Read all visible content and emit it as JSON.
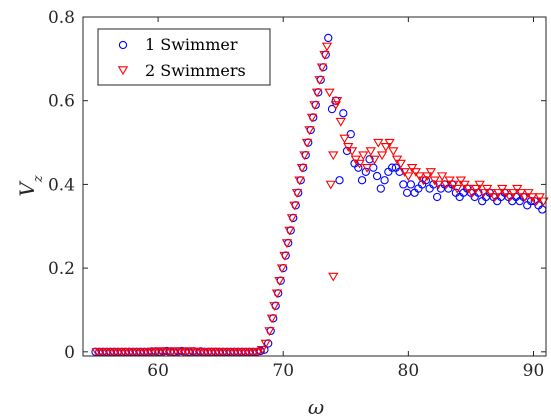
{
  "chart_data": {
    "type": "scatter",
    "title": "",
    "xlabel": "ω",
    "ylabel": "V_z",
    "xlim": [
      54,
      91
    ],
    "ylim": [
      -0.01,
      0.8
    ],
    "xticks": [
      60,
      70,
      80,
      90
    ],
    "yticks": [
      0,
      0.2,
      0.4,
      0.6,
      0.8
    ],
    "xtick_labels": [
      "60",
      "70",
      "80",
      "90"
    ],
    "ytick_labels": [
      "0",
      "0.2",
      "0.4",
      "0.6",
      "0.8"
    ],
    "grid": false,
    "legend_position": "top-left",
    "series": [
      {
        "name": "1 Swimmer",
        "marker": "circle",
        "color": "#0000ff",
        "x": [
          55.0,
          55.3,
          55.6,
          55.9,
          56.2,
          56.5,
          56.8,
          57.1,
          57.4,
          57.7,
          58.0,
          58.3,
          58.6,
          58.9,
          59.2,
          59.5,
          59.8,
          60.1,
          60.4,
          60.7,
          61.0,
          61.3,
          61.6,
          61.9,
          62.2,
          62.5,
          62.8,
          63.1,
          63.4,
          63.7,
          64.0,
          64.3,
          64.6,
          64.9,
          65.2,
          65.5,
          65.8,
          66.1,
          66.4,
          66.7,
          67.0,
          67.3,
          67.6,
          67.9,
          68.2,
          68.5,
          68.8,
          69.0,
          69.2,
          69.4,
          69.6,
          69.8,
          70.0,
          70.2,
          70.4,
          70.6,
          70.8,
          71.0,
          71.2,
          71.4,
          71.6,
          71.8,
          72.0,
          72.2,
          72.4,
          72.6,
          72.8,
          73.0,
          73.2,
          73.4,
          73.6,
          73.9,
          74.2,
          74.5,
          74.8,
          75.1,
          75.4,
          75.7,
          76.0,
          76.3,
          76.6,
          76.9,
          77.2,
          77.5,
          77.8,
          78.1,
          78.4,
          78.7,
          79.0,
          79.3,
          79.6,
          79.9,
          80.2,
          80.5,
          80.8,
          81.1,
          81.4,
          81.7,
          82.0,
          82.3,
          82.6,
          82.9,
          83.2,
          83.5,
          83.8,
          84.1,
          84.4,
          84.7,
          85.0,
          85.3,
          85.6,
          85.9,
          86.2,
          86.5,
          86.8,
          87.1,
          87.4,
          87.7,
          88.0,
          88.3,
          88.6,
          88.9,
          89.2,
          89.5,
          89.8,
          90.1,
          90.4,
          90.7
        ],
        "y": [
          0.0,
          0.0,
          0.0,
          0.0,
          0.0,
          0.0,
          0.0,
          0.0,
          0.0,
          0.0,
          0.0,
          0.0,
          0.0,
          0.0,
          0.0,
          0.001,
          0.001,
          0.0,
          0.001,
          0.002,
          0.001,
          0.0,
          0.001,
          0.002,
          0.001,
          0.0,
          0.001,
          0.0,
          0.001,
          0.0,
          0.0,
          0.0,
          0.0,
          0.0,
          0.0,
          0.0,
          0.0,
          0.0,
          0.0,
          0.0,
          0.0,
          0.0,
          0.0,
          0.0,
          0.002,
          0.005,
          0.02,
          0.05,
          0.08,
          0.11,
          0.14,
          0.17,
          0.2,
          0.23,
          0.26,
          0.29,
          0.32,
          0.35,
          0.38,
          0.41,
          0.44,
          0.47,
          0.5,
          0.53,
          0.56,
          0.59,
          0.62,
          0.65,
          0.68,
          0.71,
          0.75,
          0.58,
          0.6,
          0.41,
          0.57,
          0.48,
          0.52,
          0.45,
          0.44,
          0.41,
          0.43,
          0.46,
          0.44,
          0.42,
          0.39,
          0.41,
          0.43,
          0.44,
          0.44,
          0.43,
          0.4,
          0.38,
          0.4,
          0.38,
          0.39,
          0.4,
          0.41,
          0.39,
          0.4,
          0.37,
          0.39,
          0.4,
          0.39,
          0.4,
          0.38,
          0.37,
          0.38,
          0.39,
          0.38,
          0.37,
          0.38,
          0.36,
          0.37,
          0.38,
          0.37,
          0.36,
          0.37,
          0.38,
          0.37,
          0.36,
          0.37,
          0.36,
          0.37,
          0.35,
          0.36,
          0.36,
          0.35,
          0.34
        ]
      },
      {
        "name": "2 Swimmers",
        "marker": "triangle-down",
        "color": "#ff0000",
        "x": [
          55.1,
          55.4,
          55.7,
          56.0,
          56.3,
          56.6,
          56.9,
          57.2,
          57.5,
          57.8,
          58.1,
          58.4,
          58.7,
          59.0,
          59.3,
          59.6,
          59.9,
          60.2,
          60.5,
          60.8,
          61.1,
          61.4,
          61.7,
          62.0,
          62.3,
          62.6,
          62.9,
          63.2,
          63.5,
          63.8,
          64.1,
          64.4,
          64.7,
          65.0,
          65.3,
          65.6,
          65.9,
          66.2,
          66.5,
          66.8,
          67.1,
          67.4,
          67.7,
          68.0,
          68.3,
          68.6,
          68.9,
          69.1,
          69.3,
          69.5,
          69.7,
          69.9,
          70.1,
          70.3,
          70.5,
          70.7,
          70.9,
          71.1,
          71.3,
          71.5,
          71.7,
          71.9,
          72.1,
          72.3,
          72.5,
          72.7,
          72.9,
          73.1,
          73.3,
          73.5,
          73.7,
          74.0,
          74.3,
          74.6,
          74.9,
          75.2,
          75.5,
          75.8,
          76.1,
          76.4,
          76.7,
          77.0,
          77.3,
          77.6,
          77.9,
          78.2,
          78.5,
          78.8,
          79.1,
          79.4,
          79.7,
          80.0,
          80.3,
          80.6,
          80.9,
          81.2,
          81.5,
          81.8,
          82.1,
          82.4,
          82.7,
          83.0,
          83.3,
          83.6,
          83.9,
          84.2,
          84.5,
          84.8,
          85.1,
          85.4,
          85.7,
          86.0,
          86.3,
          86.6,
          86.9,
          87.2,
          87.5,
          87.8,
          88.1,
          88.4,
          88.7,
          89.0,
          89.3,
          89.6,
          89.9,
          90.2,
          90.5,
          90.8,
          73.8,
          74.0,
          74.2
        ],
        "y": [
          0.0,
          0.0,
          0.0,
          0.0,
          0.0,
          0.0,
          0.0,
          0.0,
          0.0,
          0.0,
          0.0,
          0.0,
          0.0,
          0.0,
          0.0,
          0.001,
          0.0,
          0.002,
          0.001,
          0.0,
          0.001,
          0.002,
          0.001,
          0.0,
          0.001,
          0.002,
          0.001,
          0.0,
          0.0,
          0.0,
          0.0,
          0.001,
          0.0,
          0.0,
          0.0,
          0.0,
          0.0,
          0.0,
          0.0,
          0.0,
          0.0,
          0.0,
          0.0,
          0.0,
          0.005,
          0.02,
          0.05,
          0.08,
          0.11,
          0.14,
          0.17,
          0.2,
          0.23,
          0.26,
          0.29,
          0.32,
          0.35,
          0.38,
          0.41,
          0.44,
          0.47,
          0.5,
          0.53,
          0.56,
          0.59,
          0.62,
          0.65,
          0.68,
          0.71,
          0.73,
          0.62,
          0.47,
          0.6,
          0.55,
          0.51,
          0.49,
          0.48,
          0.46,
          0.45,
          0.47,
          0.44,
          0.48,
          0.46,
          0.5,
          0.47,
          0.49,
          0.5,
          0.48,
          0.46,
          0.45,
          0.43,
          0.42,
          0.44,
          0.43,
          0.42,
          0.41,
          0.42,
          0.43,
          0.41,
          0.4,
          0.42,
          0.4,
          0.41,
          0.4,
          0.39,
          0.41,
          0.4,
          0.39,
          0.38,
          0.39,
          0.4,
          0.38,
          0.39,
          0.38,
          0.37,
          0.38,
          0.39,
          0.38,
          0.37,
          0.38,
          0.39,
          0.38,
          0.37,
          0.38,
          0.37,
          0.36,
          0.37,
          0.36,
          0.4,
          0.18,
          0.59
        ]
      }
    ]
  }
}
